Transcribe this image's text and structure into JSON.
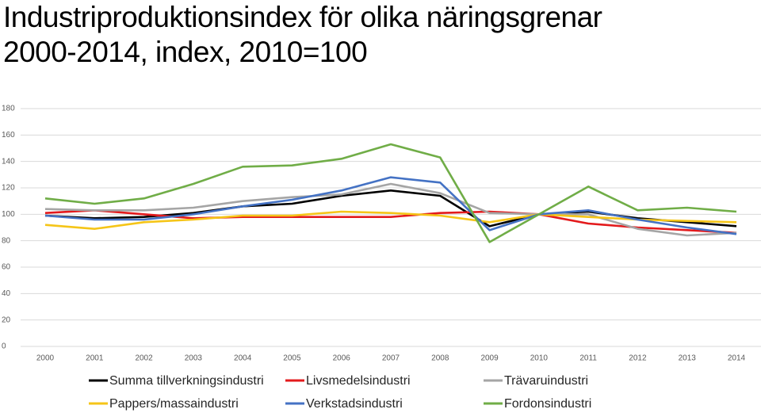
{
  "chart_data": {
    "type": "line",
    "title": "Industriproduktionsindex för olika näringsgrenar 2000-2014, index, 2010=100",
    "categories": [
      "2000",
      "2001",
      "2002",
      "2003",
      "2004",
      "2005",
      "2006",
      "2007",
      "2008",
      "2009",
      "2010",
      "2011",
      "2012",
      "2013",
      "2014"
    ],
    "ylim": [
      0,
      180
    ],
    "yticks": [
      0,
      20,
      40,
      60,
      80,
      100,
      120,
      140,
      160,
      180
    ],
    "grid": true,
    "series": [
      {
        "name": "Summa tillverkningsindustri",
        "color": "#000000",
        "values": [
          99,
          97,
          98,
          101,
          106,
          108,
          114,
          118,
          114,
          91,
          100,
          102,
          97,
          94,
          91
        ]
      },
      {
        "name": "Livsmedelsindustri",
        "color": "#e31a1c",
        "values": [
          101,
          103,
          100,
          97,
          98,
          98,
          98,
          98,
          101,
          102,
          100,
          93,
          90,
          88,
          86
        ]
      },
      {
        "name": "Trävaruindustri",
        "color": "#a5a5a5",
        "values": [
          104,
          103,
          103,
          105,
          110,
          113,
          115,
          123,
          116,
          101,
          100,
          100,
          89,
          84,
          86
        ]
      },
      {
        "name": "Pappers/massaindustri",
        "color": "#f5c518",
        "values": [
          92,
          89,
          94,
          96,
          99,
          99,
          102,
          101,
          99,
          94,
          100,
          98,
          96,
          95,
          94
        ]
      },
      {
        "name": "Verkstadsindustri",
        "color": "#4472c4",
        "values": [
          99,
          96,
          96,
          100,
          106,
          111,
          118,
          128,
          124,
          88,
          100,
          103,
          96,
          90,
          85
        ]
      },
      {
        "name": "Fordonsindustri",
        "color": "#70ad47",
        "values": [
          112,
          108,
          112,
          123,
          136,
          137,
          142,
          153,
          143,
          79,
          100,
          121,
          103,
          105,
          102
        ]
      }
    ]
  }
}
